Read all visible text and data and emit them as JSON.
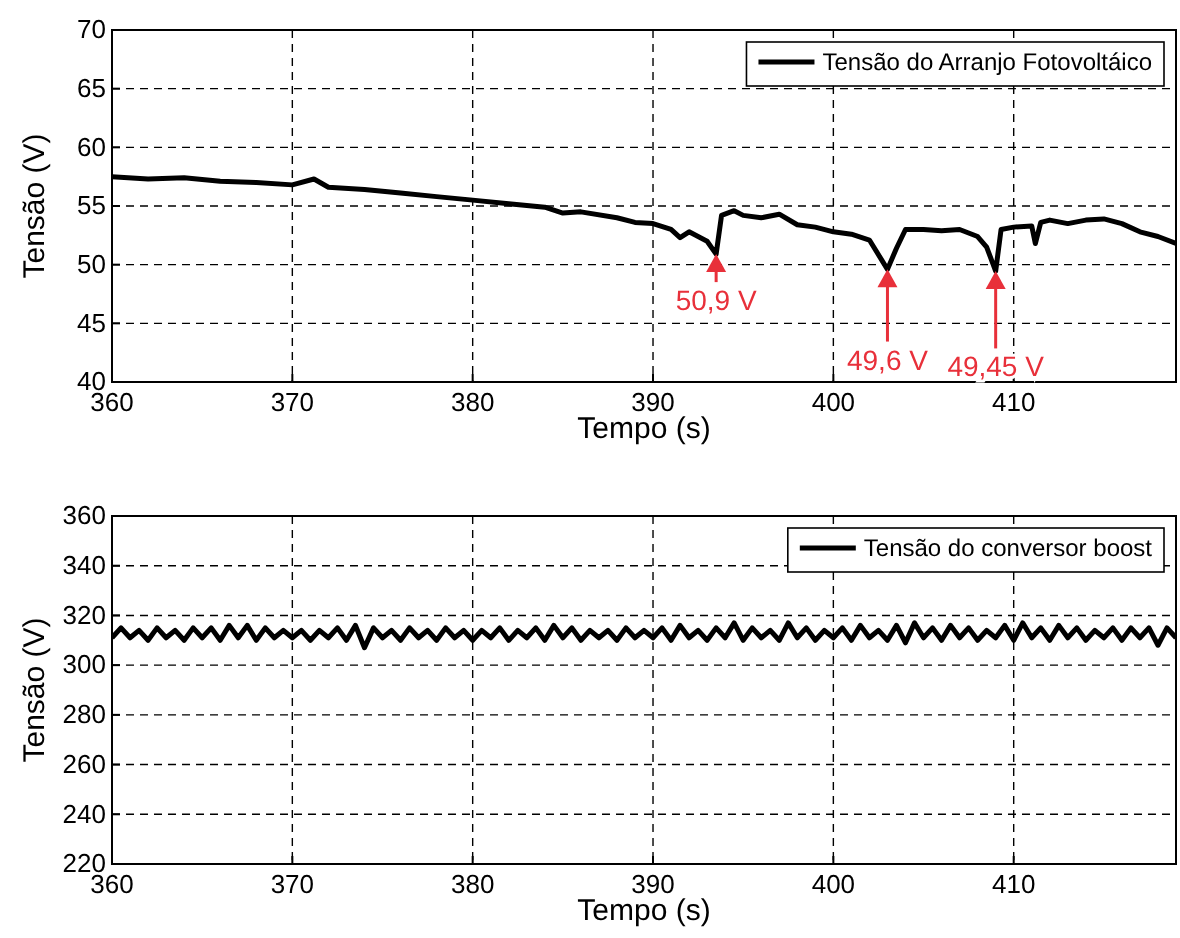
{
  "chart_data": [
    {
      "type": "line",
      "xlabel": "Tempo (s)",
      "ylabel": "Tensão (V)",
      "xlim": [
        360,
        419
      ],
      "xticks": [
        360,
        370,
        380,
        390,
        400,
        410
      ],
      "ylim": [
        40,
        70
      ],
      "yticks": [
        40,
        45,
        50,
        55,
        60,
        65,
        70
      ],
      "grid": true,
      "legend": "top right",
      "line_style": "solid",
      "marker": "none",
      "series": [
        {
          "name": "Tensão do Arranjo Fotovoltáico",
          "color": "#000000",
          "x": [
            360,
            362,
            364,
            366,
            368,
            370,
            371.2,
            372,
            374,
            376,
            378,
            380,
            382,
            384,
            385,
            386,
            388,
            389,
            390,
            391,
            391.5,
            392,
            393,
            393.5,
            393.8,
            394.5,
            395,
            396,
            397,
            398,
            399,
            400,
            401,
            402,
            403,
            403.5,
            404,
            405,
            406,
            407,
            408,
            408.5,
            409,
            409.3,
            410,
            411,
            411.2,
            411.5,
            412,
            413,
            414,
            415,
            416,
            417,
            418,
            419
          ],
          "values": [
            57.5,
            57.3,
            57.4,
            57.1,
            57.0,
            56.8,
            57.3,
            56.6,
            56.4,
            56.1,
            55.8,
            55.5,
            55.2,
            54.9,
            54.4,
            54.5,
            54.0,
            53.6,
            53.5,
            53.0,
            52.3,
            52.8,
            52.0,
            50.9,
            54.2,
            54.6,
            54.2,
            54.0,
            54.3,
            53.4,
            53.2,
            52.8,
            52.6,
            52.1,
            49.6,
            51.4,
            53.0,
            53.0,
            52.9,
            53.0,
            52.4,
            51.5,
            49.45,
            53.0,
            53.2,
            53.3,
            51.8,
            53.6,
            53.8,
            53.5,
            53.8,
            53.9,
            53.5,
            52.8,
            52.4,
            51.8
          ]
        }
      ],
      "annotations": [
        {
          "text": "50,9 V",
          "x": 393.5,
          "y": 50.9
        },
        {
          "text": "49,6 V",
          "x": 403,
          "y": 49.6
        },
        {
          "text": "49,45 V",
          "x": 409,
          "y": 49.45
        }
      ]
    },
    {
      "type": "line",
      "xlabel": "Tempo (s)",
      "ylabel": "Tensão (V)",
      "xlim": [
        360,
        419
      ],
      "xticks": [
        360,
        370,
        380,
        390,
        400,
        410
      ],
      "ylim": [
        220,
        360
      ],
      "yticks": [
        220,
        240,
        260,
        280,
        300,
        320,
        340,
        360
      ],
      "grid": true,
      "legend": "top right",
      "line_style": "solid",
      "marker": "none",
      "series": [
        {
          "name": "Tensão do conversor boost",
          "color": "#000000",
          "x": [
            360,
            360.5,
            361,
            361.5,
            362,
            362.5,
            363,
            363.5,
            364,
            364.5,
            365,
            365.5,
            366,
            366.5,
            367,
            367.5,
            368,
            368.5,
            369,
            369.5,
            370,
            370.5,
            371,
            371.5,
            372,
            372.5,
            373,
            373.5,
            374,
            374.5,
            375,
            375.5,
            376,
            376.5,
            377,
            377.5,
            378,
            378.5,
            379,
            379.5,
            380,
            380.5,
            381,
            381.5,
            382,
            382.5,
            383,
            383.5,
            384,
            384.5,
            385,
            385.5,
            386,
            386.5,
            387,
            387.5,
            388,
            388.5,
            389,
            389.5,
            390,
            390.5,
            391,
            391.5,
            392,
            392.5,
            393,
            393.5,
            394,
            394.5,
            395,
            395.5,
            396,
            396.5,
            397,
            397.5,
            398,
            398.5,
            399,
            399.5,
            400,
            400.5,
            401,
            401.5,
            402,
            402.5,
            403,
            403.5,
            404,
            404.5,
            405,
            405.5,
            406,
            406.5,
            407,
            407.5,
            408,
            408.5,
            409,
            409.5,
            410,
            410.5,
            411,
            411.5,
            412,
            412.5,
            413,
            413.5,
            414,
            414.5,
            415,
            415.5,
            416,
            416.5,
            417,
            417.5,
            418,
            418.5,
            419
          ],
          "values": [
            311,
            315,
            311,
            314,
            310,
            315,
            311,
            314,
            310,
            315,
            311,
            315,
            310,
            316,
            311,
            316,
            310,
            315,
            311,
            314,
            311,
            314,
            310,
            314,
            311,
            315,
            310,
            316,
            307,
            315,
            311,
            314,
            310,
            315,
            311,
            314,
            310,
            315,
            311,
            314,
            310,
            314,
            311,
            315,
            310,
            314,
            311,
            315,
            310,
            316,
            311,
            315,
            310,
            314,
            311,
            314,
            310,
            315,
            311,
            314,
            311,
            315,
            310,
            316,
            311,
            314,
            310,
            315,
            311,
            317,
            310,
            315,
            311,
            314,
            310,
            317,
            311,
            315,
            310,
            314,
            311,
            315,
            310,
            316,
            311,
            314,
            310,
            316,
            309,
            317,
            311,
            315,
            310,
            316,
            311,
            315,
            310,
            314,
            311,
            316,
            310,
            317,
            311,
            315,
            310,
            316,
            311,
            315,
            310,
            314,
            311,
            315,
            310,
            315,
            311,
            315,
            308,
            315,
            311
          ]
        }
      ]
    }
  ]
}
